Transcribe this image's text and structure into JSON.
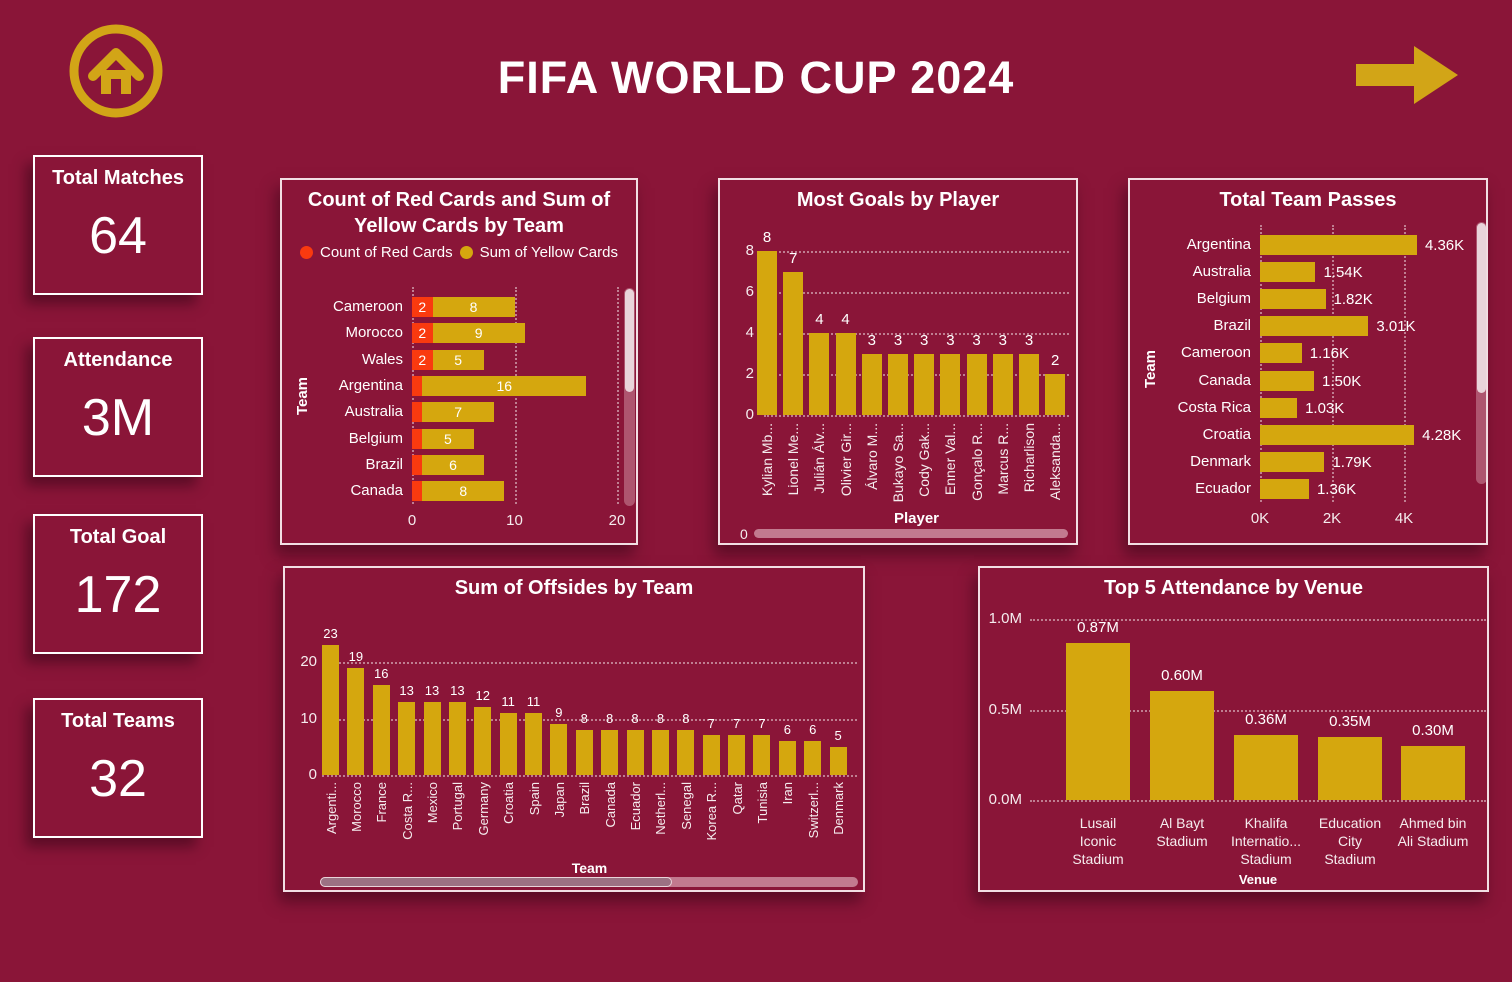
{
  "page": {
    "title": "FIFA WORLD CUP 2024",
    "colors": {
      "background": "#8A1538",
      "gold": "#D5A70E",
      "red": "#F93A0F",
      "text": "#FFFFFF"
    },
    "icons": {
      "home": "home-icon",
      "forward": "arrow-right-icon"
    }
  },
  "kpis": [
    {
      "label": "Total Matches",
      "value": "64"
    },
    {
      "label": "Attendance",
      "value": "3M"
    },
    {
      "label": "Total Goal",
      "value": "172"
    },
    {
      "label": "Total Teams",
      "value": "32"
    }
  ],
  "chart_data": [
    {
      "type": "bar",
      "orientation": "horizontal-stacked",
      "title": "Count of Red Cards and Sum of Yellow Cards by Team",
      "categories": [
        "Cameroon",
        "Morocco",
        "Wales",
        "Argentina",
        "Australia",
        "Belgium",
        "Brazil",
        "Canada"
      ],
      "series": [
        {
          "name": "Count of Red Cards",
          "color": "#F93A0F",
          "values": [
            2,
            2,
            2,
            1,
            1,
            1,
            1,
            1
          ],
          "labels": [
            "2",
            "2",
            "2",
            "",
            "",
            "",
            "",
            ""
          ]
        },
        {
          "name": "Sum of Yellow Cards",
          "color": "#D5A70E",
          "values": [
            8,
            9,
            5,
            16,
            7,
            5,
            6,
            8
          ],
          "labels": [
            "8",
            "9",
            "5",
            "16",
            "7",
            "5",
            "6",
            "8"
          ]
        }
      ],
      "xticks": [
        "0",
        "10",
        "20"
      ],
      "xlim": [
        0,
        20
      ],
      "ylabel": "Team",
      "legend_position": "top",
      "grid": "vertical-dotted",
      "scrollbar": "vertical"
    },
    {
      "type": "bar",
      "orientation": "vertical",
      "title": "Most Goals by Player",
      "categories": [
        "Kylian Mb...",
        "Lionel Me...",
        "Julián Álv...",
        "Olivier Gir...",
        "Álvaro M...",
        "Bukayo Sa...",
        "Cody Gak...",
        "Enner Val...",
        "Gonçalo R...",
        "Marcus R...",
        "Richarlison",
        "Aleksanda..."
      ],
      "values": [
        8,
        7,
        4,
        4,
        3,
        3,
        3,
        3,
        3,
        3,
        3,
        2
      ],
      "yticks": [
        0,
        2,
        4,
        6,
        8
      ],
      "ylim": [
        0,
        8.8
      ],
      "xlabel": "Player",
      "scroll_label": "0",
      "grid": "horizontal-dotted",
      "scrollbar": "horizontal"
    },
    {
      "type": "bar",
      "orientation": "horizontal",
      "title": "Total Team Passes",
      "categories": [
        "Argentina",
        "Australia",
        "Belgium",
        "Brazil",
        "Cameroon",
        "Canada",
        "Costa Rica",
        "Croatia",
        "Denmark",
        "Ecuador"
      ],
      "values_k": [
        4.36,
        1.54,
        1.82,
        3.01,
        1.16,
        1.5,
        1.03,
        4.28,
        1.79,
        1.36
      ],
      "labels": [
        "4.36K",
        "1.54K",
        "1.82K",
        "3.01K",
        "1.16K",
        "1.50K",
        "1.03K",
        "4.28K",
        "1.79K",
        "1.36K"
      ],
      "xticks": [
        "0K",
        "2K",
        "4K"
      ],
      "xlim_k": [
        0,
        4.6
      ],
      "ylabel": "Team",
      "grid": "vertical-dotted",
      "scrollbar": "vertical"
    },
    {
      "type": "bar",
      "orientation": "vertical",
      "title": "Sum of Offsides by Team",
      "categories": [
        "Argenti...",
        "Morocco",
        "France",
        "Costa R...",
        "Mexico",
        "Portugal",
        "Germany",
        "Croatia",
        "Spain",
        "Japan",
        "Brazil",
        "Canada",
        "Ecuador",
        "Netherl...",
        "Senegal",
        "Korea R...",
        "Qatar",
        "Tunisia",
        "Iran",
        "Switzerl...",
        "Denmark"
      ],
      "values": [
        23,
        19,
        16,
        13,
        13,
        13,
        12,
        11,
        11,
        9,
        8,
        8,
        8,
        8,
        8,
        7,
        7,
        7,
        6,
        6,
        5
      ],
      "yticks": [
        0,
        10,
        20
      ],
      "ylim": [
        0,
        25
      ],
      "xlabel": "Team",
      "grid": "horizontal-dotted",
      "scrollbar": "horizontal"
    },
    {
      "type": "bar",
      "orientation": "vertical",
      "title": "Top 5 Attendance by Venue",
      "categories": [
        "Lusail Iconic Stadium",
        "Al Bayt Stadium",
        "Khalifa Internatio... Stadium",
        "Education City Stadium",
        "Ahmed bin Ali Stadium"
      ],
      "categories_display": [
        "Lusail\nIconic\nStadium",
        "Al Bayt\nStadium",
        "Khalifa\nInternatio...\nStadium",
        "Education\nCity\nStadium",
        "Ahmed bin\nAli Stadium"
      ],
      "values_m": [
        0.87,
        0.6,
        0.36,
        0.35,
        0.3
      ],
      "labels": [
        "0.87M",
        "0.60M",
        "0.36M",
        "0.35M",
        "0.30M"
      ],
      "yticks": [
        "0.0M",
        "0.5M",
        "1.0M"
      ],
      "ylim_m": [
        0,
        1.0
      ],
      "xlabel": "Venue",
      "grid": "horizontal-dotted"
    }
  ]
}
